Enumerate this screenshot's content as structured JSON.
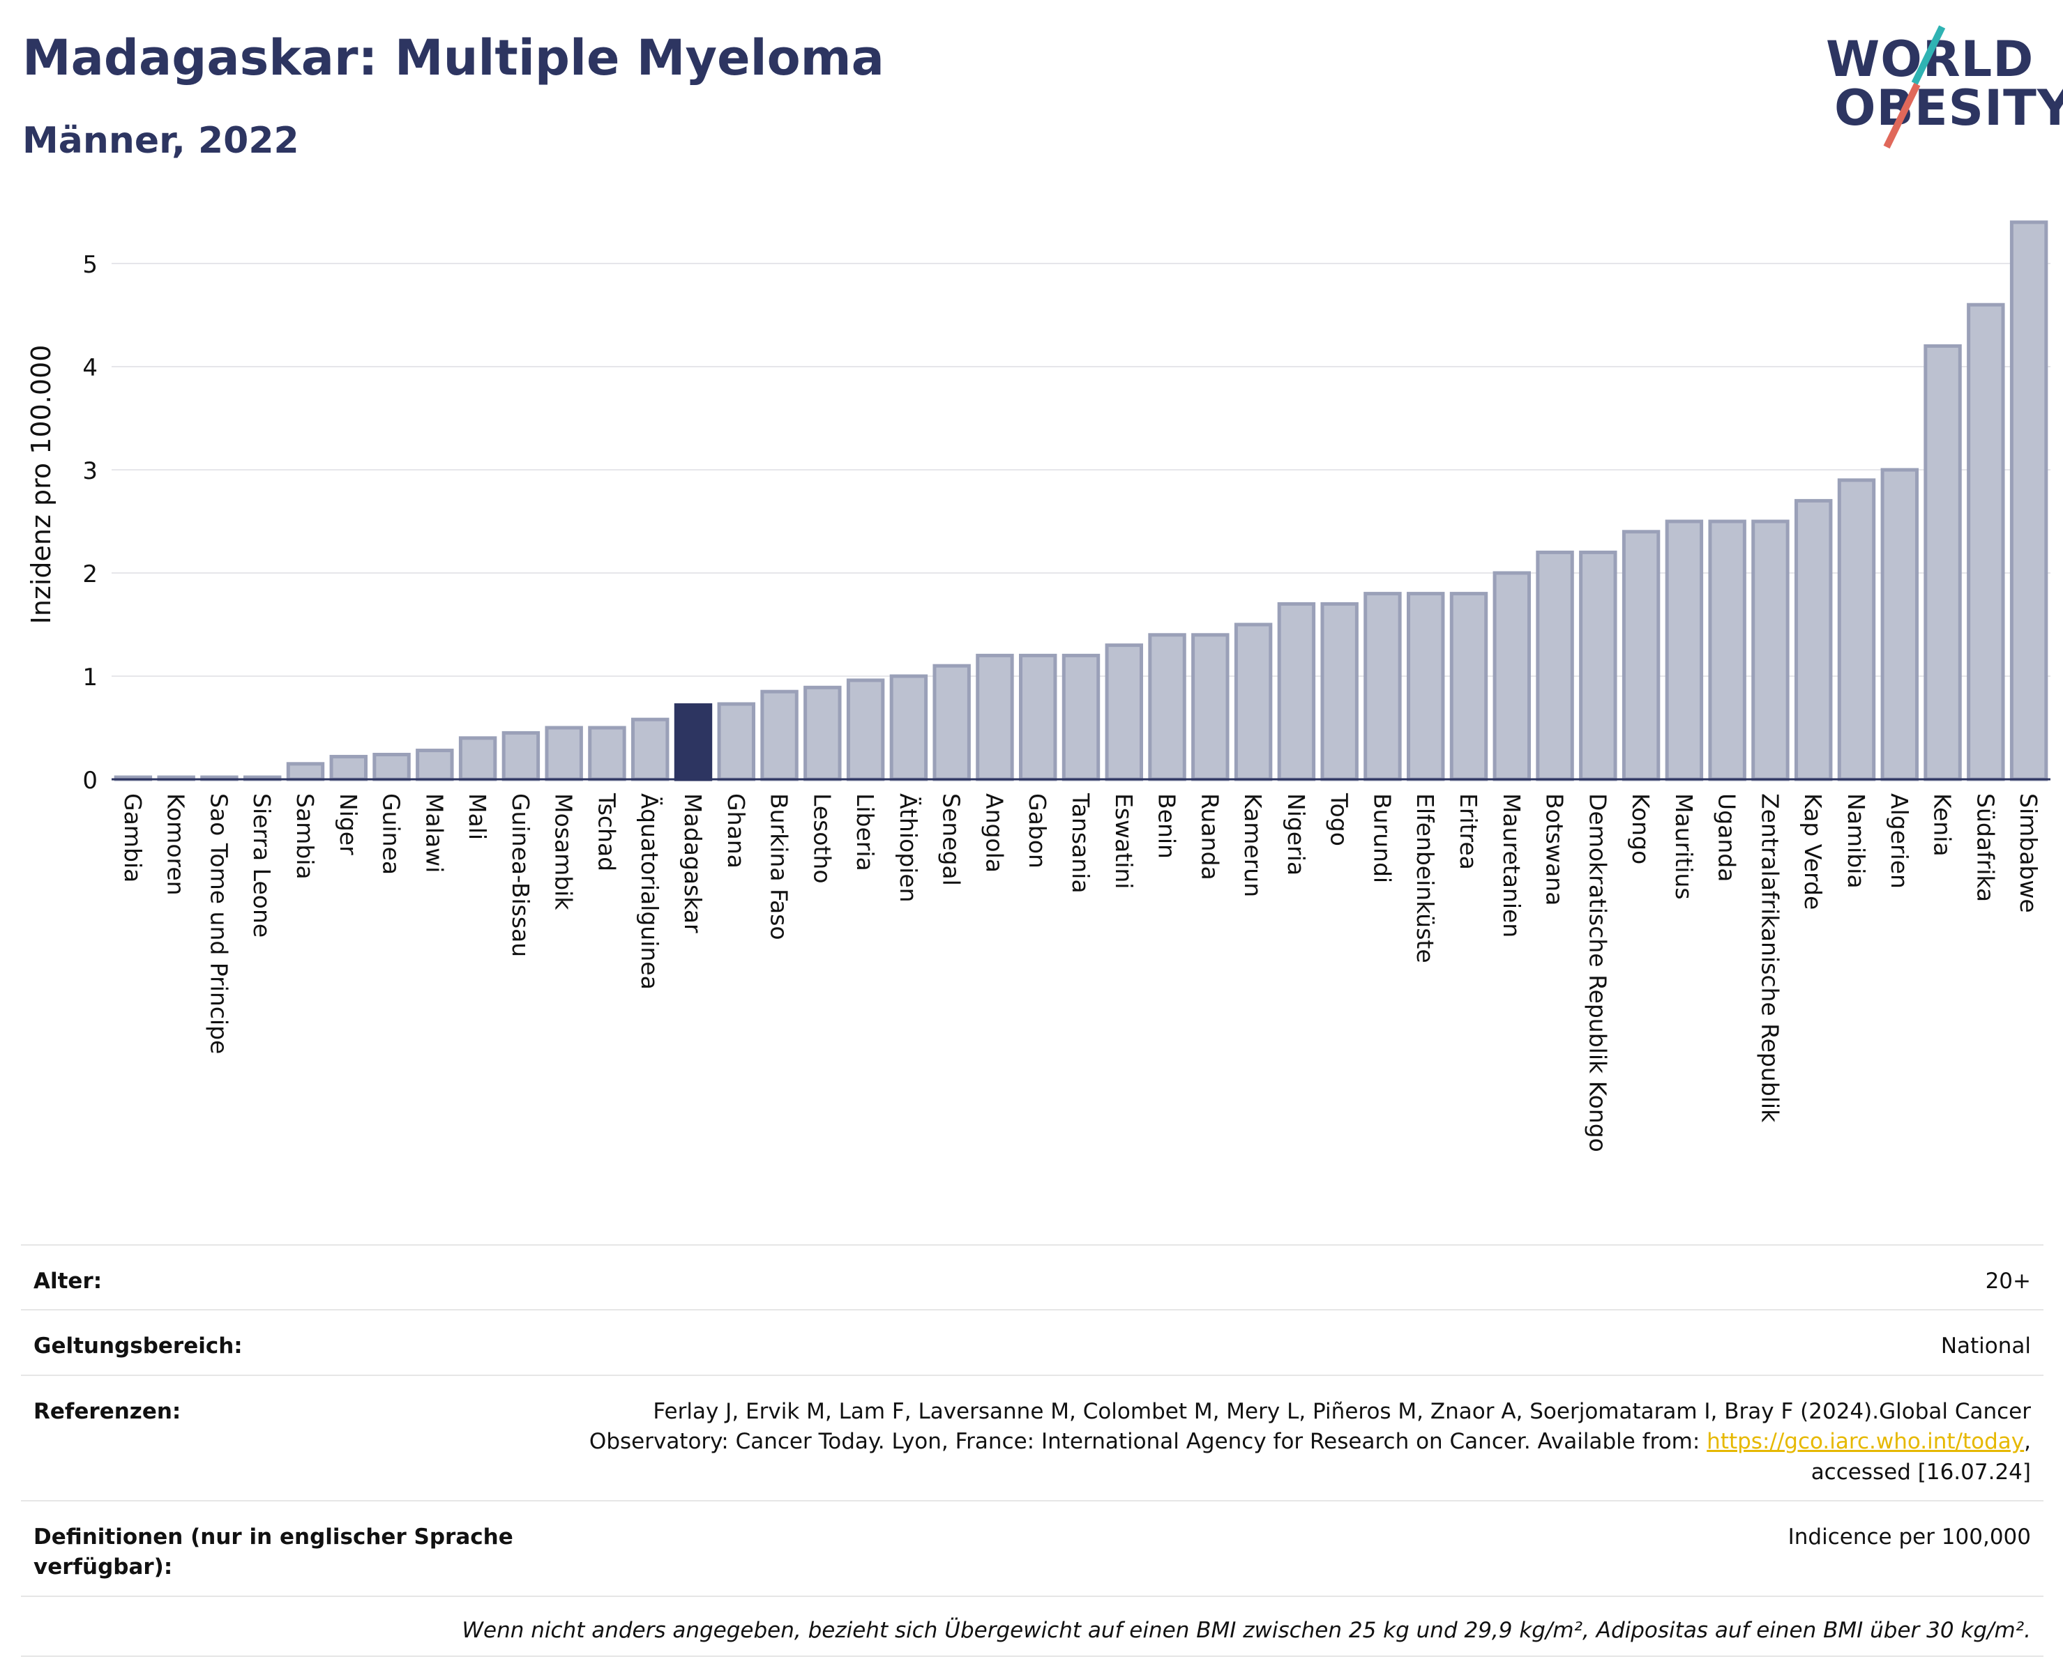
{
  "header": {
    "title": "Madagaskar: Multiple Myeloma",
    "subtitle": "Männer, 2022"
  },
  "logo": {
    "line1": "WORLD",
    "line2": "OBESITY",
    "colors": {
      "text": "#2d3561",
      "teal": "#2fb3b3",
      "red": "#e0685a"
    }
  },
  "chart_data": {
    "type": "bar",
    "ylabel": "Inzidenz pro 100.000",
    "ylim": [
      0,
      5.5
    ],
    "yticks": [
      0,
      1,
      2,
      3,
      4,
      5
    ],
    "grid": true,
    "highlight": "Madagaskar",
    "colors": {
      "bar": "#bcc1d0",
      "bar_edge": "#9aa0b8",
      "highlight": "#2d3561"
    },
    "categories": [
      "Gambia",
      "Komoren",
      "Sao Tome und Principe",
      "Sierra Leone",
      "Sambia",
      "Niger",
      "Guinea",
      "Malawi",
      "Mali",
      "Guinea-Bissau",
      "Mosambik",
      "Tschad",
      "Äquatorialguinea",
      "Madagaskar",
      "Ghana",
      "Burkina Faso",
      "Lesotho",
      "Liberia",
      "Äthiopien",
      "Senegal",
      "Angola",
      "Gabon",
      "Tansania",
      "Eswatini",
      "Benin",
      "Ruanda",
      "Kamerun",
      "Nigeria",
      "Togo",
      "Burundi",
      "Elfenbeinküste",
      "Eritrea",
      "Mauretanien",
      "Botswana",
      "Demokratische Republik Kongo",
      "Kongo",
      "Mauritius",
      "Uganda",
      "Zentralafrikanische Republik",
      "Kap Verde",
      "Namibia",
      "Algerien",
      "Kenia",
      "Südafrika",
      "Simbabwe"
    ],
    "values": [
      0.0,
      0.0,
      0.0,
      0.0,
      0.15,
      0.22,
      0.24,
      0.28,
      0.4,
      0.45,
      0.5,
      0.5,
      0.58,
      0.72,
      0.73,
      0.85,
      0.89,
      0.96,
      1.0,
      1.1,
      1.2,
      1.2,
      1.2,
      1.3,
      1.4,
      1.4,
      1.5,
      1.7,
      1.7,
      1.8,
      1.8,
      1.8,
      2.0,
      2.2,
      2.2,
      2.4,
      2.5,
      2.5,
      2.5,
      2.7,
      2.9,
      3.0,
      4.2,
      4.6,
      5.4
    ]
  },
  "info": {
    "age_label": "Alter:",
    "age_value": "20+",
    "scope_label": "Geltungsbereich:",
    "scope_value": "National",
    "refs_label": "Referenzen:",
    "refs_text": "Ferlay J, Ervik M, Lam F, Laversanne M, Colombet M, Mery L, Piñeros M, Znaor A, Soerjomataram I, Bray F (2024).Global Cancer Observatory: Cancer Today. Lyon, France: International Agency for Research on Cancer. Available from:",
    "refs_link": "https://gco.iarc.who.int/today",
    "refs_after": ", accessed [16.07.24]",
    "defs_label": "Definitionen (nur in englischer Sprache verfügbar):",
    "defs_value": "Indicence per 100,000",
    "note": "Wenn nicht anders angegeben, bezieht sich Übergewicht auf einen BMI zwischen 25 kg und 29,9 kg/m², Adipositas auf einen BMI über 30 kg/m²."
  }
}
